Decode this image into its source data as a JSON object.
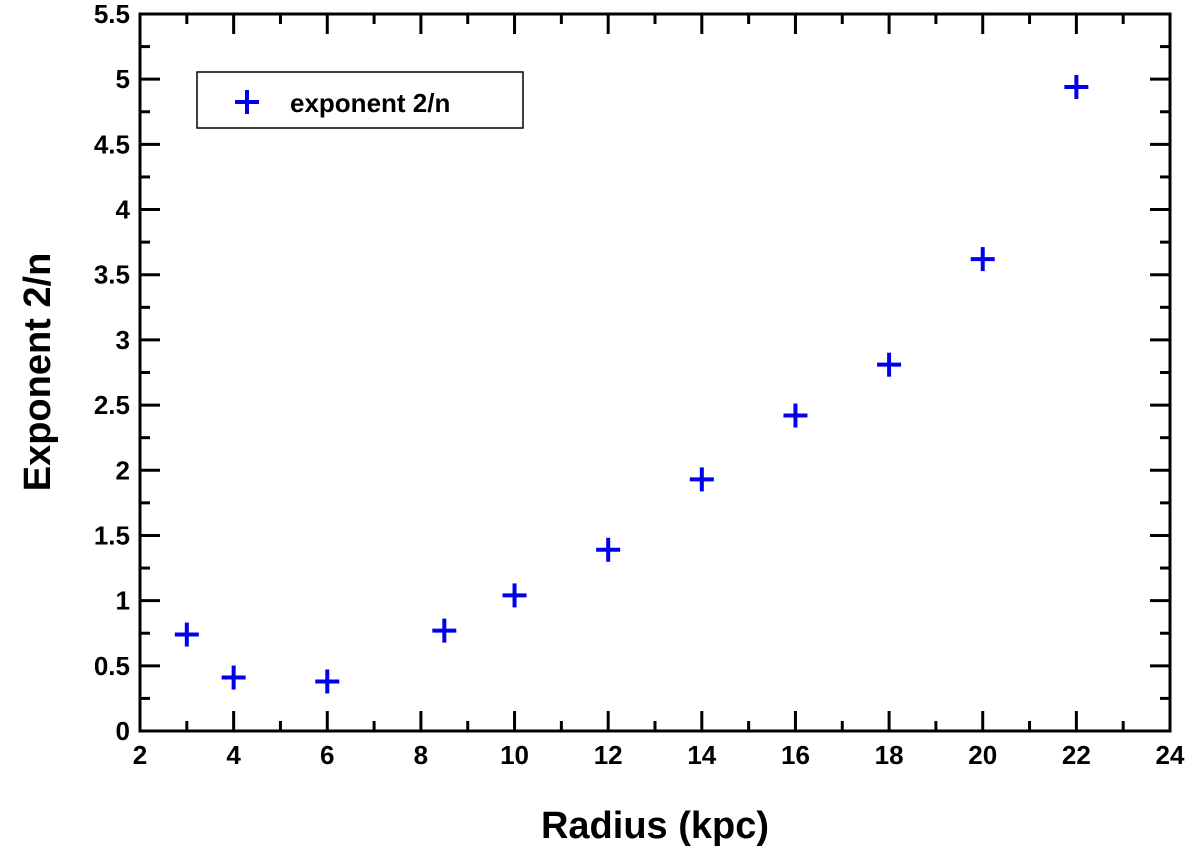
{
  "chart_data": {
    "type": "scatter",
    "xlabel": "Radius  (kpc)",
    "ylabel": "Exponent   2/n",
    "xlim": [
      2,
      24
    ],
    "ylim": [
      0,
      5.5
    ],
    "x_ticks": [
      2,
      4,
      6,
      8,
      10,
      12,
      14,
      16,
      18,
      20,
      22,
      24
    ],
    "y_ticks": [
      0,
      0.5,
      1,
      1.5,
      2,
      2.5,
      3,
      3.5,
      4,
      4.5,
      5,
      5.5
    ],
    "grid": false,
    "legend_position": "top-left",
    "series": [
      {
        "name": "exponent 2/n",
        "color": "#0000ee",
        "marker": "plus",
        "x": [
          3,
          4,
          6,
          8.5,
          10,
          12,
          14,
          16,
          18,
          20,
          22
        ],
        "y": [
          0.74,
          0.41,
          0.38,
          0.77,
          1.04,
          1.39,
          1.93,
          2.42,
          2.81,
          3.62,
          4.94
        ]
      }
    ]
  }
}
